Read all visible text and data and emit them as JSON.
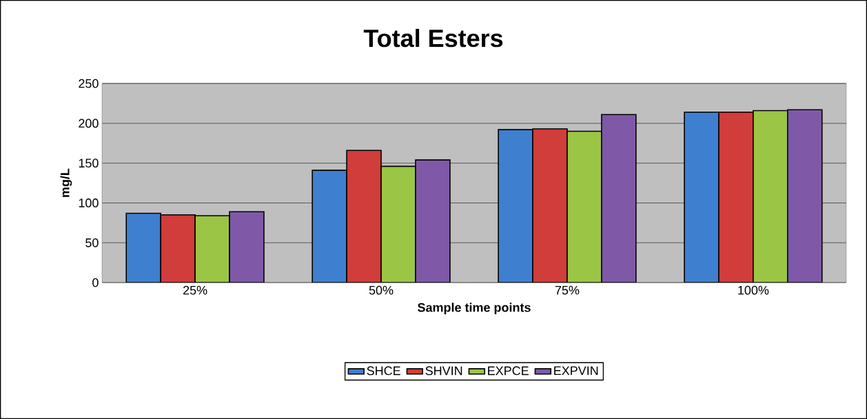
{
  "chart_data": {
    "type": "bar",
    "title": "Total Esters",
    "xlabel": "Sample time points",
    "ylabel": "mg/L",
    "categories": [
      "25%",
      "50%",
      "75%",
      "100%"
    ],
    "series": [
      {
        "name": "SHCE",
        "color": "#3f7fd0",
        "values": [
          87,
          141,
          192,
          214
        ]
      },
      {
        "name": "SHVIN",
        "color": "#d03d3a",
        "values": [
          85,
          166,
          193,
          214
        ]
      },
      {
        "name": "EXPCE",
        "color": "#9bc545",
        "values": [
          84,
          146,
          190,
          216
        ]
      },
      {
        "name": "EXPVIN",
        "color": "#7f59a8",
        "values": [
          89,
          154,
          211,
          217
        ]
      }
    ],
    "ylim": [
      0,
      250
    ],
    "yticks": [
      0,
      50,
      100,
      150,
      200,
      250
    ],
    "grid": "y",
    "legend": "bottom"
  }
}
